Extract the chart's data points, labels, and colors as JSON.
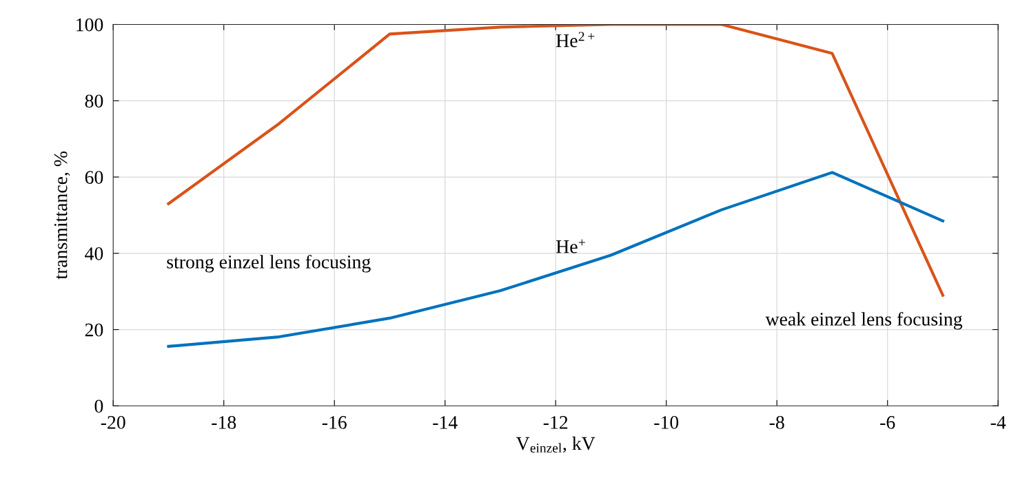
{
  "chart_data": {
    "type": "line",
    "xlabel": "V$_{einzel}$, kV",
    "ylabel": "transmittance, %",
    "x": [
      -19,
      -17,
      -15,
      -13,
      -11,
      -9,
      -7,
      -5
    ],
    "series": [
      {
        "color": "#d95319",
        "values": [
          53,
          74,
          97.5,
          99.3,
          100,
          100,
          92.4,
          29
        ]
      },
      {
        "color": "#0072bd",
        "values": [
          15.6,
          18.1,
          23,
          30.2,
          39.5,
          51.4,
          61.2,
          48.5
        ]
      }
    ],
    "xlim": [
      -20,
      -4
    ],
    "xticks": [
      -20,
      -18,
      -16,
      -14,
      -12,
      -10,
      -8,
      -6,
      -4
    ],
    "ylim": [
      0,
      100
    ],
    "yticks": [
      0,
      20,
      40,
      60,
      80,
      100
    ],
    "grid": true,
    "marker": "none",
    "line_style": "solid",
    "annotations": [
      "He$^{2+}$",
      "He$^{+}$",
      "strong einzel lens focusing",
      "weak einzel lens focusing"
    ]
  }
}
